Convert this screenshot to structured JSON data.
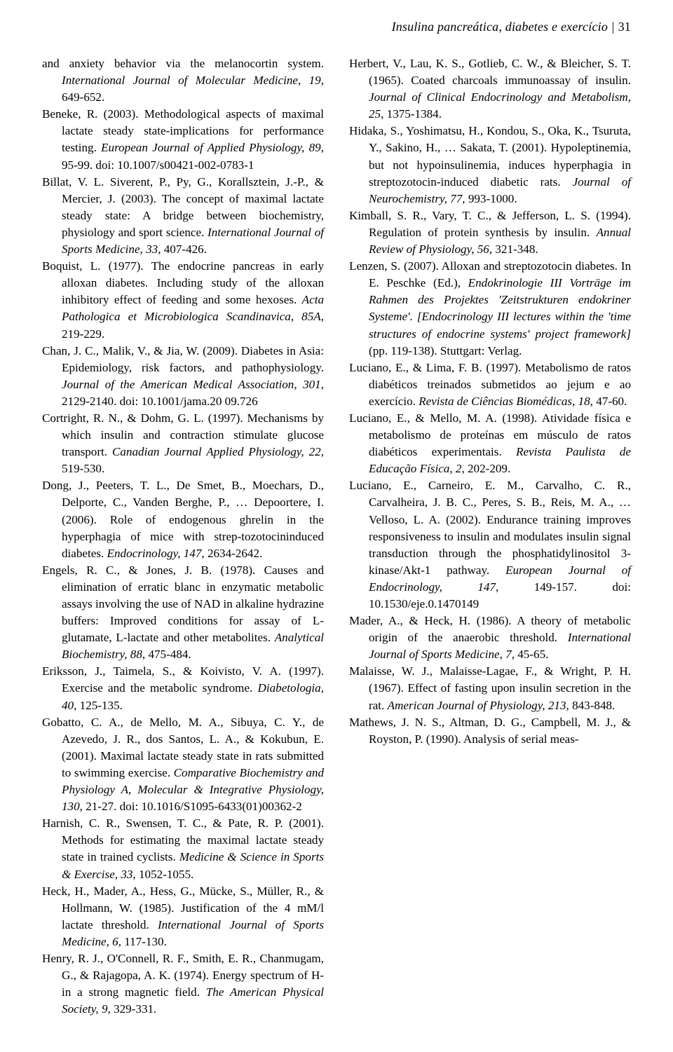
{
  "header": {
    "running_title": "Insulina pancreática, diabetes e exercício",
    "page_number": "31"
  },
  "references": [
    {
      "html": "and anxiety behavior via the melanocortin system. <span class=\"ital\">International Journal of Molecular Medicine, 19</span>, 649-652."
    },
    {
      "html": "Beneke, R. (2003). Methodological aspects of maximal lactate steady state-implications for performance testing. <span class=\"ital\">European Journal of Applied Physiology, 89</span>, 95-99. doi: 10.1007/s00421-002-0783-1"
    },
    {
      "html": "Billat, V. L. Siverent, P., Py, G., Korallsztein, J.-P., &amp; Mercier, J. (2003). The concept of maximal lactate steady state: A bridge between biochemistry, physiology and sport science. <span class=\"ital\">International Journal of Sports Medicine, 33</span>, 407-426."
    },
    {
      "html": "Boquist, L. (1977). The endocrine pancreas in early alloxan diabetes. Including study of the alloxan inhibitory effect of feeding and some hexoses. <span class=\"ital\">Acta Pathologica et Microbiologica Scandinavica, 85A</span>, 219-229."
    },
    {
      "html": "Chan, J. C., Malik, V., &amp; Jia, W. (2009). Diabetes in Asia: Epidemiology, risk factors, and pathophysiology. <span class=\"ital\">Journal of the American Medical Association, 301</span>, 2129-2140. doi: 10.1001/jama.20 09.726"
    },
    {
      "html": "Cortright, R. N., &amp; Dohm, G. L. (1997). Mechanisms by which insulin and contraction stimulate glucose transport. <span class=\"ital\">Canadian Journal Applied Physiology, 22</span>, 519-530."
    },
    {
      "html": "Dong, J., Peeters, T. L., De Smet, B., Moechars, D., Delporte, C., Vanden Berghe, P., … Depoortere, I. (2006). Role of endogenous ghrelin in the hyperphagia of mice with strep-tozotocininduced diabetes. <span class=\"ital\">Endocrinology, 147</span>, 2634-2642."
    },
    {
      "html": "Engels, R. C., &amp; Jones, J. B. (1978). Causes and elimination of erratic blanc in enzymatic metabolic assays involving the use of NAD in alkaline hydrazine buffers: Improved conditions for assay of L-glutamate, L-lactate and other metabolites. <span class=\"ital\">Analytical Biochemistry, 88</span>, 475-484."
    },
    {
      "html": "Eriksson, J., Taimela, S., &amp; Koivisto, V. A. (1997). Exercise and the metabolic syndrome. <span class=\"ital\">Diabetologia, 40</span>, 125-135."
    },
    {
      "html": "Gobatto, C. A., de Mello, M. A., Sibuya, C. Y., de Azevedo, J. R., dos Santos, L. A., &amp; Kokubun, E. (2001). Maximal lactate steady state in rats submitted to swimming exercise. <span class=\"ital\">Comparative Biochemistry and Physiology A, Molecular &amp; Integrative Physiology, 130</span>, 21-27. doi: 10.1016/S1095-6433(01)00362-2"
    },
    {
      "html": "Harnish, C. R., Swensen, T. C., &amp; Pate, R. P. (2001). Methods for estimating the maximal lactate steady state in trained cyclists. <span class=\"ital\">Medicine &amp; Science in Sports &amp; Exercise, 33</span>, 1052-1055."
    },
    {
      "html": "Heck, H., Mader, A., Hess, G., Mücke, S., Müller, R., &amp; Hollmann, W. (1985). Justification of the 4 mM/l lactate threshold. <span class=\"ital\">International Journal of Sports Medicine, 6</span>, 117-130."
    },
    {
      "html": "Henry, R. J., O'Connell, R. F., Smith, E. R., Chanmugam, G., &amp; Rajagopa, A. K. (1974). Energy spectrum of H- in a strong magnetic field. <span class=\"ital\">The American Physical Society, 9</span>, 329-331."
    },
    {
      "html": "Herbert, V., Lau, K. S., Gotlieb, C. W., &amp; Bleicher, S. T. (1965). Coated charcoals immunoassay of insulin. <span class=\"ital\">Journal of Clinical Endocrinology and Metabolism, 25</span>, 1375-1384."
    },
    {
      "html": "Hidaka, S., Yoshimatsu, H., Kondou, S., Oka, K., Tsuruta, Y., Sakino, H., … Sakata, T. (2001). Hypoleptinemia, but not hypoinsulinemia, induces hyperphagia in streptozotocin-induced diabetic rats. <span class=\"ital\">Journal of Neurochemistry, 77</span>, 993-1000."
    },
    {
      "html": "Kimball, S. R., Vary, T. C., &amp; Jefferson, L. S. (1994). Regulation of protein synthesis by insulin. <span class=\"ital\">Annual Review of Physiology, 56</span>, 321-348."
    },
    {
      "html": "Lenzen, S. (2007). Alloxan and streptozotocin diabetes. In E. Peschke (Ed.), <span class=\"ital\">Endokrinologie III Vorträge im Rahmen des Projektes 'Zeitstrukturen endokriner Systeme'. [Endocrinology III lectures within the 'time structures of endocrine systems' project framework]</span> (pp. 119-138). Stuttgart: Verlag."
    },
    {
      "html": "Luciano, E., &amp; Lima, F. B. (1997). Metabolismo de ratos diabéticos treinados submetidos ao jejum e ao exercício. <span class=\"ital\">Revista de Ciências Biomédicas, 18</span>, 47-60."
    },
    {
      "html": "Luciano, E., &amp; Mello, M. A. (1998). Atividade física e metabolismo de proteínas em músculo de ratos diabéticos experimentais. <span class=\"ital\">Revista Paulista de Educação Física, 2</span>, 202-209."
    },
    {
      "html": "Luciano, E., Carneiro, E. M., Carvalho, C. R., Carvalheira, J. B. C., Peres, S. B., Reis, M. A., … Velloso, L. A. (2002). Endurance training improves responsiveness to insulin and modulates insulin signal transduction through the phosphatidylinositol 3-kinase/Akt-1 pathway. <span class=\"ital\">European Journal of Endocrinology, 147</span>, 149-157. doi: 10.1530/eje.0.1470149"
    },
    {
      "html": "Mader, A., &amp; Heck, H. (1986). A theory of metabolic origin of the anaerobic threshold. <span class=\"ital\">International Journal of Sports Medicine, 7</span>, 45-65."
    },
    {
      "html": "Malaisse, W. J., Malaisse-Lagae, F., &amp; Wright, P. H. (1967). Effect of fasting upon insulin secretion in the rat. <span class=\"ital\">American Journal of Physiology, 213</span>, 843-848."
    },
    {
      "html": "Mathews, J. N. S., Altman, D. G., Campbell, M. J., &amp; Royston, P. (1990). Analysis of serial meas-"
    }
  ]
}
